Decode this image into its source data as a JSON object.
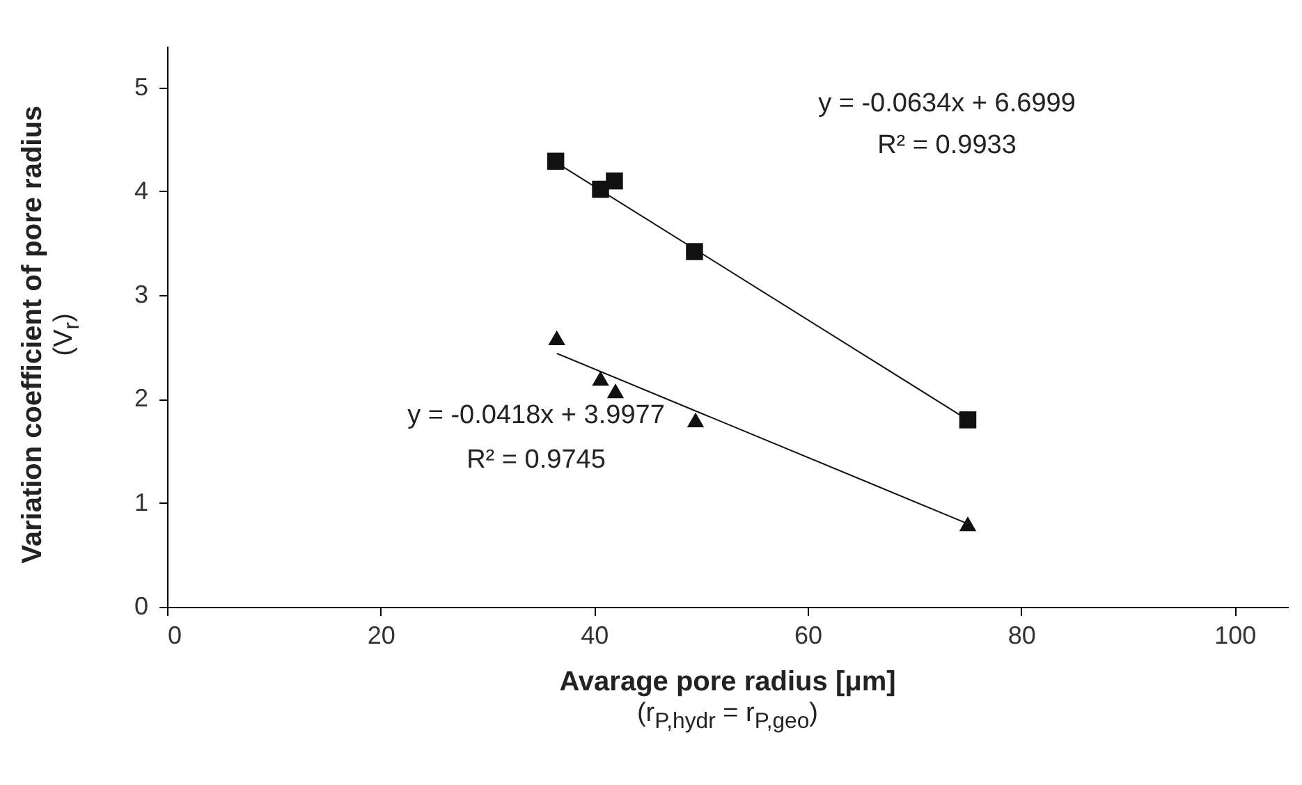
{
  "chart_data": {
    "type": "scatter",
    "xlabel": "Avarage pore radius [μm]\n(r$_{P,hydr}$ = r$_{P,geo}$)",
    "ylabel": "Variation coefficient of pore radius\n(V$_{r}$)",
    "xlim": [
      0,
      105
    ],
    "ylim": [
      0,
      5.4
    ],
    "xticks": [
      0,
      20,
      40,
      60,
      80,
      100
    ],
    "yticks": [
      0,
      1,
      2,
      3,
      4,
      5
    ],
    "grid": false,
    "series": [
      {
        "marker": "square",
        "color": "#111111",
        "x": [
          36.4,
          40.6,
          41.9,
          49.4,
          75.0
        ],
        "values": [
          4.29,
          4.02,
          4.1,
          3.42,
          1.8
        ]
      },
      {
        "marker": "triangle",
        "color": "#111111",
        "x": [
          36.5,
          40.6,
          42.0,
          49.5,
          75.0
        ],
        "values": [
          2.59,
          2.2,
          2.08,
          1.8,
          0.8
        ]
      },
      {
        "type": "line",
        "color": "#111111",
        "x": [
          36.4,
          75.0
        ],
        "values": [
          4.28,
          1.8
        ]
      },
      {
        "type": "line",
        "color": "#111111",
        "x": [
          36.5,
          75.0
        ],
        "values": [
          2.44,
          0.8
        ]
      }
    ],
    "annotations": [
      "y = -0.0634x + 6.6999",
      "R² = 0.9933",
      "y = -0.0418x + 3.9977",
      "R² = 0.9745"
    ]
  }
}
